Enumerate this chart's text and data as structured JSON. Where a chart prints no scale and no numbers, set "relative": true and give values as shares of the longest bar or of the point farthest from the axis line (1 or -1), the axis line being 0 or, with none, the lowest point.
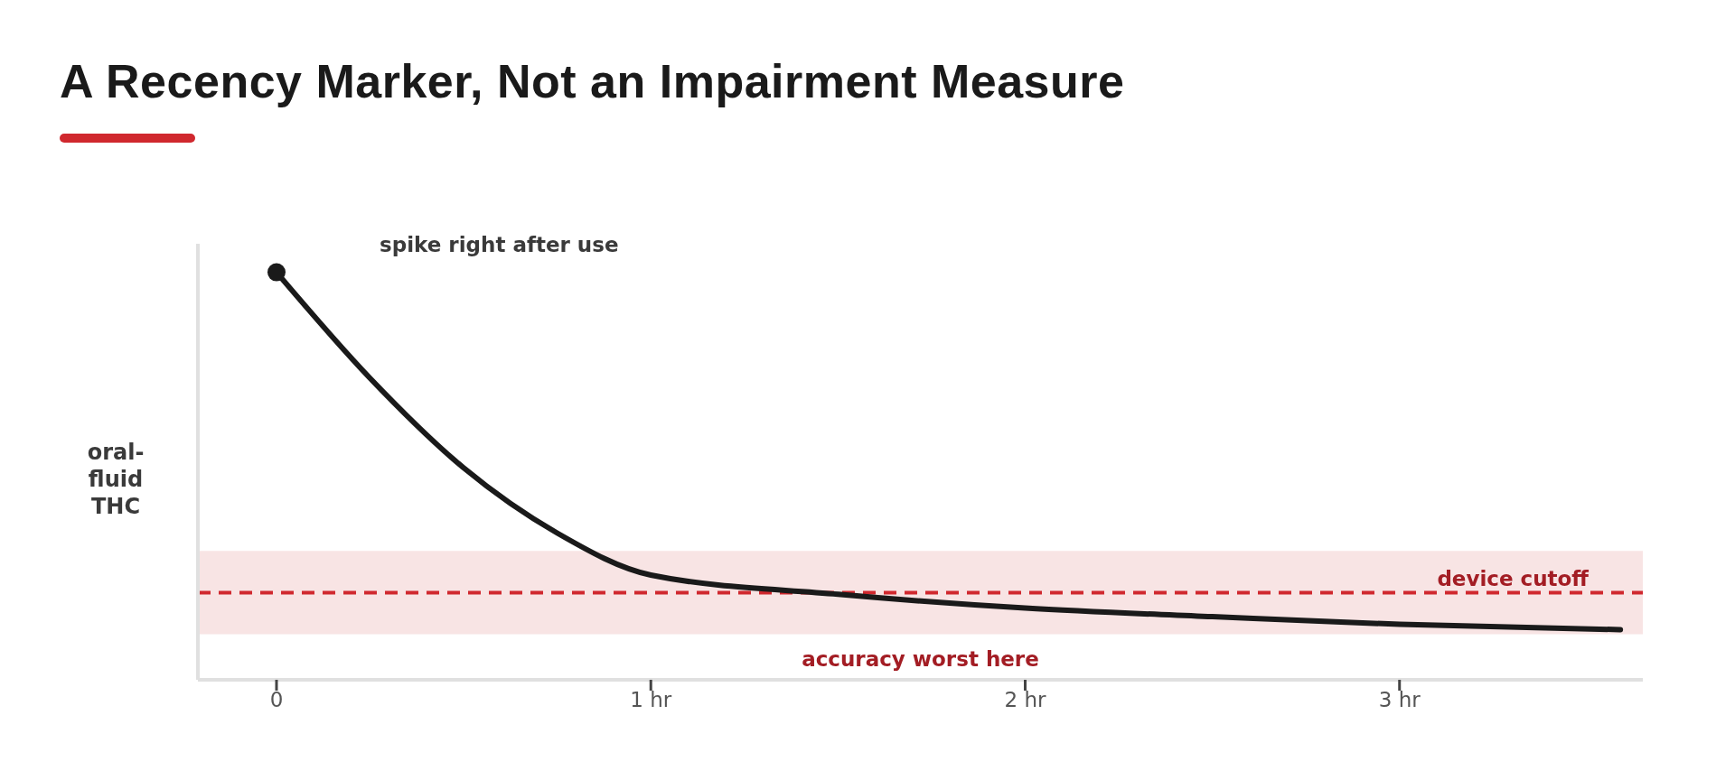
{
  "chart_data": {
    "type": "line",
    "title": "A Recency Marker, Not an Impairment Measure",
    "ylabel": "oral-fluid THC",
    "relative": true,
    "xlim": [
      -0.21,
      3.65
    ],
    "xticks": [
      {
        "value": 0,
        "label": "0"
      },
      {
        "value": 1,
        "label": "1 hr"
      },
      {
        "value": 2,
        "label": "2 hr"
      },
      {
        "value": 3,
        "label": "3 hr"
      }
    ],
    "series": [
      {
        "color": "#1a1a1a",
        "marker": "none",
        "x": [
          0,
          0.25,
          0.5,
          0.75,
          1,
          1.5,
          2,
          2.5,
          3,
          3.59
        ],
        "values": [
          1,
          0.74,
          0.52,
          0.36,
          0.257,
          0.21,
          0.176,
          0.155,
          0.136,
          0.123
        ]
      },
      {
        "type": "scatter",
        "marker": "circle",
        "color": "#1a1a1a",
        "x": [
          0
        ],
        "values": [
          1
        ]
      }
    ],
    "line_style": "solid",
    "ref_lines": [
      {
        "axis": "y",
        "value": 0.214,
        "label": "device cutoff",
        "color": "#d0282e",
        "line_style": "dashed"
      }
    ],
    "bands": [
      {
        "axis": "y",
        "from": 0.112,
        "to": 0.316,
        "label": "accuracy worst here",
        "color": "#f8e4e4"
      }
    ],
    "annotations": [
      "spike right after use"
    ]
  }
}
